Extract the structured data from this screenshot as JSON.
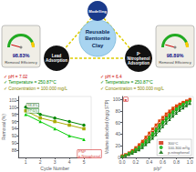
{
  "chart_data": [
    {
      "type": "diagram",
      "title": "Reusable\nBentonite\nClay",
      "color": "#a8d4f0",
      "annotations": [
        {
          "text": "Modelling",
          "color": "#1a3a8b"
        },
        {
          "text": "Lead\nAdsorption",
          "color": "#111111"
        },
        {
          "text": "p-\nNitrophenol\nAdsorption",
          "color": "#111111"
        },
        {
          "text": "98.83%"
        },
        {
          "text": "Removal Efficiency"
        },
        {
          "text": "98.89%"
        },
        {
          "text": "Removal Efficiency"
        },
        {
          "text": "✓ pH = 7.02",
          "color": "#cc0000"
        },
        {
          "text": "✓ Temperature = 250.87°C",
          "color": "#008800"
        },
        {
          "text": "✓ Concentration = 100.000 mg/L",
          "color": "#888800"
        },
        {
          "text": "✓ pH = 6.4",
          "color": "#cc0000"
        },
        {
          "text": "✓ Temperature = 250.87°C",
          "color": "#008800"
        },
        {
          "text": "✓ Concentration = 500.000 mg/L",
          "color": "#888800"
        }
      ]
    },
    {
      "type": "line",
      "xlabel": "Cycle Number",
      "ylabel": "Removal (%)",
      "x": [
        1,
        2,
        3,
        4,
        5
      ],
      "series": [
        {
          "color": "#008800",
          "marker": "circle",
          "values": [
            100,
            98,
            97,
            96,
            95
          ]
        },
        {
          "color": "#aaaa00",
          "marker": "square",
          "values": [
            99,
            97,
            96,
            95,
            94
          ]
        },
        {
          "color": "#00cc00",
          "marker": "triangle",
          "values": [
            98,
            96,
            94,
            92,
            91
          ]
        }
      ],
      "xlim": [
        0.5,
        5.5
      ],
      "ylim": [
        86,
        103
      ],
      "xticks": [
        1,
        2,
        3,
        4,
        5
      ],
      "yticks": [
        88,
        90,
        92,
        94,
        96,
        98,
        100,
        102
      ],
      "grid": false,
      "annotations": [
        {
          "text": "98.8%",
          "x": 1,
          "y": 100.5,
          "color": "#005500"
        },
        {
          "text": "97.5%",
          "x": 1,
          "y": 99,
          "color": "#007700"
        },
        {
          "text": "PNP\np-Nitrophenol",
          "x": 4.5,
          "y": 87,
          "color": "#cc0000"
        }
      ]
    },
    {
      "type": "line",
      "xlabel": "p/p°",
      "ylabel": "Volume adsorbed (mg/g STP)",
      "x": [
        0.0,
        0.05,
        0.1,
        0.15,
        0.2,
        0.25,
        0.3,
        0.35,
        0.4,
        0.45,
        0.5,
        0.55,
        0.6,
        0.65,
        0.7,
        0.75,
        0.8,
        0.85,
        0.9,
        0.95,
        1.0
      ],
      "series": [
        {
          "color": "#cc2200",
          "marker": "square",
          "values": [
            2,
            4,
            7,
            10,
            14,
            19,
            25,
            30,
            36,
            43,
            50,
            57,
            64,
            70,
            76,
            81,
            86,
            90,
            94,
            97,
            100
          ]
        },
        {
          "color": "#00aa00",
          "marker": "circle",
          "values": [
            2,
            3,
            6,
            9,
            12,
            16,
            21,
            26,
            32,
            38,
            45,
            52,
            59,
            65,
            71,
            77,
            82,
            86,
            90,
            94,
            97
          ]
        },
        {
          "color": "#006600",
          "marker": "triangle",
          "values": [
            1,
            3,
            5,
            7,
            10,
            13,
            17,
            22,
            27,
            33,
            39,
            46,
            53,
            59,
            65,
            71,
            76,
            81,
            85,
            89,
            93
          ]
        },
        {
          "color": "#dd4400",
          "marker": "square",
          "values": [
            3,
            5,
            8,
            12,
            17,
            22,
            28,
            35,
            42,
            49,
            56,
            63,
            69,
            75,
            80,
            85,
            89,
            92,
            95,
            97,
            99
          ]
        },
        {
          "color": "#22bb22",
          "marker": "circle",
          "values": [
            2,
            4,
            7,
            10,
            14,
            18,
            23,
            29,
            35,
            42,
            49,
            56,
            62,
            68,
            74,
            79,
            84,
            88,
            92,
            95,
            97
          ]
        },
        {
          "color": "#338833",
          "marker": "triangle",
          "values": [
            1,
            3,
            5,
            8,
            11,
            15,
            19,
            24,
            30,
            36,
            43,
            50,
            57,
            63,
            69,
            74,
            79,
            84,
            88,
            91,
            94
          ]
        },
        {
          "name": "300°C",
          "type": "scatter",
          "color": "#cc2200",
          "marker": "square",
          "values": [
            null,
            null,
            null,
            null,
            null,
            null,
            null,
            null,
            null,
            null,
            null,
            null,
            null,
            null,
            null,
            null,
            null,
            null,
            null,
            null,
            null
          ]
        },
        {
          "name": "100-300 m²/g",
          "type": "scatter",
          "color": "#00aa00",
          "marker": "circle",
          "values": [
            null,
            null,
            null,
            null,
            null,
            null,
            null,
            null,
            null,
            null,
            null,
            null,
            null,
            null,
            null,
            null,
            null,
            null,
            null,
            null,
            null
          ]
        },
        {
          "name": "p-nitrophenol",
          "type": "scatter",
          "color": "#006600",
          "marker": "triangle",
          "values": [
            null,
            null,
            null,
            null,
            null,
            null,
            null,
            null,
            null,
            null,
            null,
            null,
            null,
            null,
            null,
            null,
            null,
            null,
            null,
            null,
            null
          ]
        }
      ],
      "xlim": [
        0,
        1.05
      ],
      "ylim": [
        0,
        105
      ],
      "xticks": [
        {
          "value": 0,
          "label": "0.0"
        },
        0.2,
        0.4,
        0.6,
        0.8,
        {
          "value": 1,
          "label": "1.0"
        }
      ],
      "yticks": [
        0,
        20,
        40,
        60,
        80,
        100
      ],
      "grid": false,
      "legend": "lower right",
      "annotations": [
        {
          "text": "■",
          "x": 0.01,
          "y": 100,
          "color": "#cc0000"
        }
      ]
    }
  ]
}
